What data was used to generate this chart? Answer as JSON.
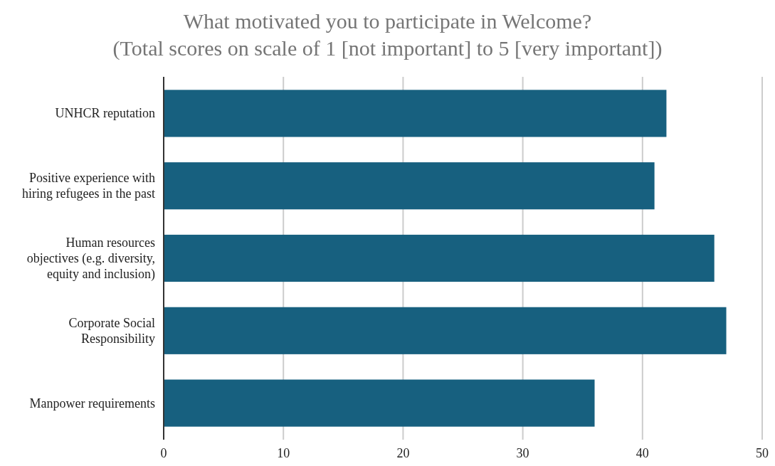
{
  "chart_data": {
    "type": "bar",
    "orientation": "horizontal",
    "title": "What motivated you to participate in Welcome?",
    "subtitle": "(Total scores on scale of 1 [not important] to 5 [very important])",
    "categories": [
      "UNHCR reputation",
      "Positive experience with hiring refugees in the past",
      "Human resources objectives (e.g. diversity, equity and inclusion)",
      "Corporate Social Responsibility",
      "Manpower requirements"
    ],
    "values": [
      42,
      41,
      46,
      47,
      36
    ],
    "color": "#17607f",
    "xlim": [
      0,
      50
    ],
    "xticks": [
      0,
      10,
      20,
      30,
      40,
      50
    ],
    "grid": "x"
  }
}
